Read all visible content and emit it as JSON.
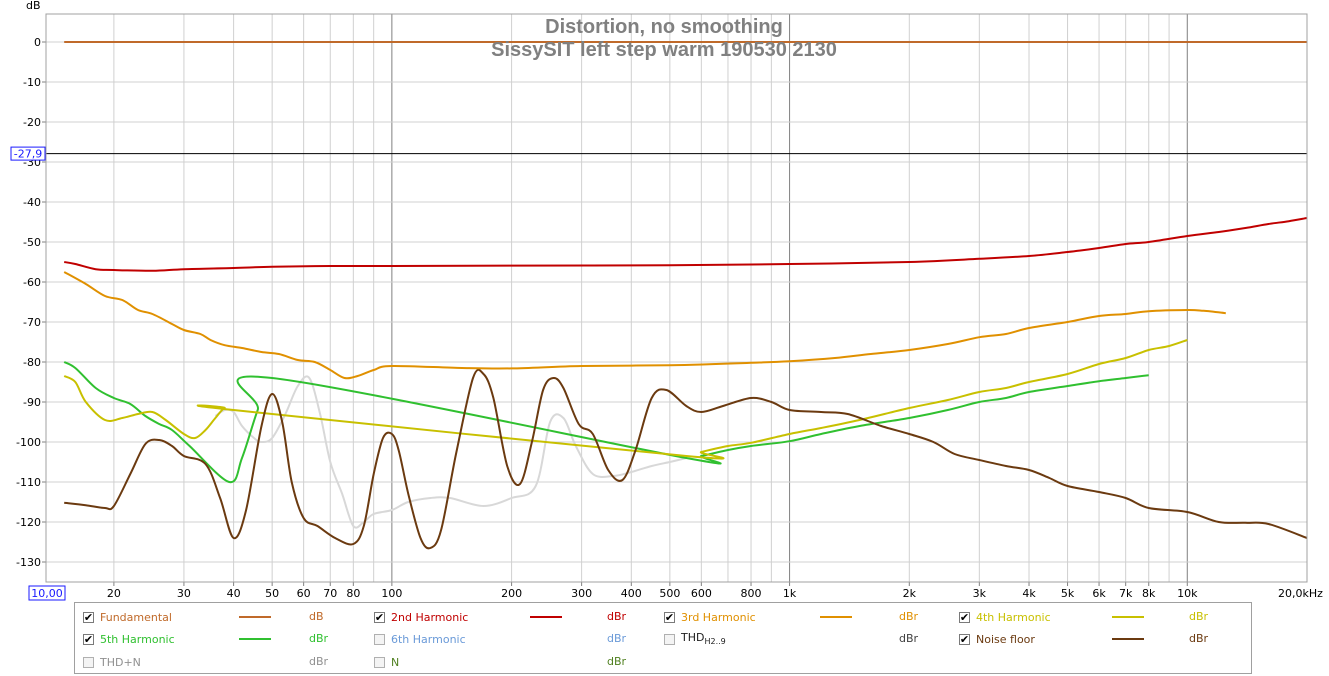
{
  "chart_data": {
    "type": "line",
    "title": "Distortion, no smoothing",
    "subtitle": "SissySIT left step warm 190530 2130",
    "ylabel": "dB",
    "xunit_label": "20,0kHz",
    "x_scale": "log",
    "xlim": [
      13.5,
      20000
    ],
    "ylim": [
      -135,
      7
    ],
    "y_ticks": [
      0,
      -10,
      -20,
      -30,
      -40,
      -50,
      -60,
      -70,
      -80,
      -90,
      -100,
      -110,
      -120,
      -130
    ],
    "x_ticks": [
      {
        "v": 20,
        "l": "20"
      },
      {
        "v": 30,
        "l": "30"
      },
      {
        "v": 40,
        "l": "40"
      },
      {
        "v": 50,
        "l": "50"
      },
      {
        "v": 60,
        "l": "60"
      },
      {
        "v": 70,
        "l": "70"
      },
      {
        "v": 80,
        "l": "80"
      },
      {
        "v": 100,
        "l": "100"
      },
      {
        "v": 200,
        "l": "200"
      },
      {
        "v": 300,
        "l": "300"
      },
      {
        "v": 400,
        "l": "400"
      },
      {
        "v": 500,
        "l": "500"
      },
      {
        "v": 600,
        "l": "600"
      },
      {
        "v": 800,
        "l": "800"
      },
      {
        "v": 1000,
        "l": "1k"
      },
      {
        "v": 2000,
        "l": "2k"
      },
      {
        "v": 3000,
        "l": "3k"
      },
      {
        "v": 4000,
        "l": "4k"
      },
      {
        "v": 5000,
        "l": "5k"
      },
      {
        "v": 6000,
        "l": "6k"
      },
      {
        "v": 7000,
        "l": "7k"
      },
      {
        "v": 8000,
        "l": "8k"
      },
      {
        "v": 10000,
        "l": "10k"
      }
    ],
    "x_min_box": "10,00",
    "cursor": {
      "y": -27.9,
      "label": "-27,9"
    },
    "grid": true,
    "legend_position": "bottom",
    "series": [
      {
        "name": "Fundamental",
        "color": "#c06a2a",
        "points": [
          [
            15,
            0
          ],
          [
            20000,
            0
          ]
        ]
      },
      {
        "name": "2nd Harmonic",
        "color": "#c00000",
        "points": [
          [
            15,
            -55
          ],
          [
            16,
            -55.5
          ],
          [
            18,
            -56.8
          ],
          [
            20,
            -57
          ],
          [
            25,
            -57.2
          ],
          [
            30,
            -56.8
          ],
          [
            40,
            -56.5
          ],
          [
            50,
            -56.2
          ],
          [
            70,
            -56
          ],
          [
            100,
            -56
          ],
          [
            200,
            -55.9
          ],
          [
            500,
            -55.8
          ],
          [
            1000,
            -55.5
          ],
          [
            2000,
            -55
          ],
          [
            3000,
            -54.2
          ],
          [
            4000,
            -53.5
          ],
          [
            5000,
            -52.5
          ],
          [
            6000,
            -51.5
          ],
          [
            7000,
            -50.5
          ],
          [
            8000,
            -50
          ],
          [
            10000,
            -48.5
          ],
          [
            12000,
            -47.5
          ],
          [
            14000,
            -46.5
          ],
          [
            16000,
            -45.5
          ],
          [
            18000,
            -44.8
          ],
          [
            20000,
            -44
          ]
        ]
      },
      {
        "name": "3rd Harmonic",
        "color": "#e09000",
        "points": [
          [
            15,
            -57.5
          ],
          [
            17,
            -60.5
          ],
          [
            19,
            -63.5
          ],
          [
            21,
            -64.5
          ],
          [
            23,
            -67
          ],
          [
            25,
            -68
          ],
          [
            28,
            -70.5
          ],
          [
            30,
            -72
          ],
          [
            33,
            -73
          ],
          [
            35,
            -74.5
          ],
          [
            38,
            -75.8
          ],
          [
            42,
            -76.5
          ],
          [
            47,
            -77.5
          ],
          [
            52,
            -78
          ],
          [
            58,
            -79.5
          ],
          [
            64,
            -80
          ],
          [
            70,
            -82
          ],
          [
            76,
            -84
          ],
          [
            82,
            -83.5
          ],
          [
            90,
            -82
          ],
          [
            100,
            -81
          ],
          [
            150,
            -81.5
          ],
          [
            200,
            -81.6
          ],
          [
            300,
            -81
          ],
          [
            500,
            -80.8
          ],
          [
            800,
            -80.2
          ],
          [
            1000,
            -79.8
          ],
          [
            1300,
            -79
          ],
          [
            1600,
            -78
          ],
          [
            2000,
            -77
          ],
          [
            2500,
            -75.5
          ],
          [
            3000,
            -73.8
          ],
          [
            3500,
            -73
          ],
          [
            4000,
            -71.5
          ],
          [
            5000,
            -70
          ],
          [
            6000,
            -68.5
          ],
          [
            7000,
            -68
          ],
          [
            8000,
            -67.3
          ],
          [
            10000,
            -67
          ],
          [
            11000,
            -67.2
          ],
          [
            12500,
            -67.8
          ]
        ]
      },
      {
        "name": "4th Harmonic",
        "color": "#c8c000",
        "points": [
          [
            15,
            -83.5
          ],
          [
            16,
            -85
          ],
          [
            17,
            -90
          ],
          [
            19,
            -94.5
          ],
          [
            21,
            -94
          ],
          [
            23,
            -93
          ],
          [
            25,
            -92.5
          ],
          [
            27,
            -94.5
          ],
          [
            30,
            -98
          ],
          [
            32,
            -99
          ],
          [
            34,
            -97
          ],
          [
            36,
            -94
          ],
          [
            38,
            -91.5
          ],
          [
            40,
            -92
          ],
          [
            550,
            -103.5
          ],
          [
            600,
            -102.5
          ],
          [
            700,
            -101
          ],
          [
            800,
            -100.2
          ],
          [
            1000,
            -98
          ],
          [
            1200,
            -96.5
          ],
          [
            1500,
            -94.5
          ],
          [
            2000,
            -91.5
          ],
          [
            2500,
            -89.5
          ],
          [
            3000,
            -87.5
          ],
          [
            3500,
            -86.5
          ],
          [
            4000,
            -85
          ],
          [
            5000,
            -83
          ],
          [
            6000,
            -80.5
          ],
          [
            7000,
            -79
          ],
          [
            8000,
            -77
          ],
          [
            9000,
            -76
          ],
          [
            10000,
            -74.5
          ]
        ]
      },
      {
        "name": "5th Harmonic",
        "color": "#30c030",
        "points": [
          [
            15,
            -80
          ],
          [
            16,
            -81.5
          ],
          [
            18,
            -86.5
          ],
          [
            20,
            -89
          ],
          [
            22,
            -90.5
          ],
          [
            24,
            -93.5
          ],
          [
            26,
            -95.5
          ],
          [
            28,
            -97
          ],
          [
            31,
            -101
          ],
          [
            39,
            -110
          ],
          [
            42,
            -104
          ],
          [
            46,
            -92
          ],
          [
            50,
            -84
          ],
          [
            550,
            -104
          ],
          [
            600,
            -103.5
          ],
          [
            700,
            -102
          ],
          [
            800,
            -101
          ],
          [
            1000,
            -99.8
          ],
          [
            1200,
            -98
          ],
          [
            1500,
            -96
          ],
          [
            2000,
            -94
          ],
          [
            2500,
            -92
          ],
          [
            3000,
            -90
          ],
          [
            3500,
            -89
          ],
          [
            4000,
            -87.5
          ],
          [
            5000,
            -86
          ],
          [
            6000,
            -84.8
          ],
          [
            7000,
            -84
          ],
          [
            8000,
            -83.3
          ]
        ]
      },
      {
        "name": "Noise floor",
        "color": "#6b3a10",
        "points": [
          [
            15,
            -115.2
          ],
          [
            17,
            -115.8
          ],
          [
            19,
            -116.5
          ],
          [
            20,
            -116
          ],
          [
            22,
            -108
          ],
          [
            24,
            -100.5
          ],
          [
            26,
            -99.5
          ],
          [
            28,
            -101
          ],
          [
            30,
            -103.5
          ],
          [
            34,
            -105.5
          ],
          [
            37,
            -114
          ],
          [
            40,
            -124
          ],
          [
            43,
            -117
          ],
          [
            47,
            -96
          ],
          [
            50,
            -88
          ],
          [
            53,
            -95
          ],
          [
            56,
            -110
          ],
          [
            60,
            -119
          ],
          [
            65,
            -121
          ],
          [
            72,
            -124
          ],
          [
            80,
            -125.5
          ],
          [
            85,
            -121
          ],
          [
            90,
            -108
          ],
          [
            95,
            -99
          ],
          [
            100,
            -98
          ],
          [
            104,
            -102
          ],
          [
            110,
            -113
          ],
          [
            118,
            -124
          ],
          [
            125,
            -126.5
          ],
          [
            133,
            -122
          ],
          [
            145,
            -103
          ],
          [
            160,
            -84
          ],
          [
            170,
            -83
          ],
          [
            180,
            -89
          ],
          [
            195,
            -106
          ],
          [
            210,
            -110.5
          ],
          [
            225,
            -100
          ],
          [
            240,
            -87
          ],
          [
            255,
            -84
          ],
          [
            270,
            -86.5
          ],
          [
            295,
            -95.5
          ],
          [
            320,
            -98
          ],
          [
            350,
            -107
          ],
          [
            380,
            -109.5
          ],
          [
            410,
            -102
          ],
          [
            450,
            -89
          ],
          [
            490,
            -87
          ],
          [
            550,
            -91
          ],
          [
            600,
            -92.5
          ],
          [
            680,
            -91
          ],
          [
            800,
            -89
          ],
          [
            900,
            -90
          ],
          [
            1000,
            -92
          ],
          [
            1200,
            -92.5
          ],
          [
            1400,
            -93
          ],
          [
            1700,
            -96
          ],
          [
            2000,
            -98
          ],
          [
            2300,
            -100
          ],
          [
            2600,
            -103
          ],
          [
            3000,
            -104.5
          ],
          [
            3500,
            -106
          ],
          [
            4000,
            -107
          ],
          [
            4500,
            -109
          ],
          [
            5000,
            -111
          ],
          [
            6000,
            -112.5
          ],
          [
            7000,
            -114
          ],
          [
            8000,
            -116.5
          ],
          [
            10000,
            -117.5
          ],
          [
            12000,
            -120
          ],
          [
            14000,
            -120.2
          ],
          [
            16000,
            -120.5
          ],
          [
            20000,
            -124
          ]
        ]
      }
    ],
    "thd_trace": {
      "color": "#d8d8d8",
      "points": [
        [
          36,
          -93.5
        ],
        [
          38,
          -92
        ],
        [
          40,
          -92.5
        ],
        [
          42,
          -96
        ],
        [
          45,
          -99
        ],
        [
          47,
          -100
        ],
        [
          50,
          -99
        ],
        [
          54,
          -93
        ],
        [
          58,
          -86
        ],
        [
          62,
          -84
        ],
        [
          66,
          -93
        ],
        [
          70,
          -105
        ],
        [
          75,
          -113
        ],
        [
          80,
          -121
        ],
        [
          85,
          -120
        ],
        [
          90,
          -118
        ],
        [
          100,
          -117
        ],
        [
          110,
          -115
        ],
        [
          125,
          -114
        ],
        [
          140,
          -114
        ],
        [
          170,
          -116
        ],
        [
          200,
          -114
        ],
        [
          230,
          -111
        ],
        [
          250,
          -95
        ],
        [
          270,
          -94
        ],
        [
          290,
          -101
        ],
        [
          320,
          -108
        ],
        [
          360,
          -108.5
        ],
        [
          400,
          -107.5
        ],
        [
          450,
          -106
        ],
        [
          500,
          -105
        ],
        [
          550,
          -104
        ]
      ]
    }
  },
  "legend": [
    {
      "label": "Fundamental",
      "checked": true,
      "color": "#c06a2a",
      "unit": "dB",
      "unit_color": "#c06a2a"
    },
    {
      "label": "2nd Harmonic",
      "checked": true,
      "color": "#c00000",
      "unit": "dBr",
      "unit_color": "#c00000"
    },
    {
      "label": "3rd Harmonic",
      "checked": true,
      "color": "#e09000",
      "unit": "dBr",
      "unit_color": "#e09000"
    },
    {
      "label": "4th Harmonic",
      "checked": true,
      "color": "#c8c000",
      "unit": "dBr",
      "unit_color": "#c8c000"
    },
    {
      "label": "5th Harmonic",
      "checked": true,
      "color": "#30c030",
      "unit": "dBr",
      "unit_color": "#30c030"
    },
    {
      "label": "6th Harmonic",
      "checked": false,
      "color": "#6a9ad8",
      "unit": "dBr",
      "unit_color": "#6a9ad8"
    },
    {
      "label": "THD",
      "sub": "H2..9",
      "checked": false,
      "color": "#202020",
      "unit": "dBr",
      "unit_color": "#404040"
    },
    {
      "label": "Noise floor",
      "checked": true,
      "color": "#6b3a10",
      "unit": "dBr",
      "unit_color": "#6b3a10"
    },
    {
      "label": "THD+N",
      "checked": false,
      "color": "#909090",
      "unit": "dBr",
      "unit_color": "#909090"
    },
    {
      "label": "N",
      "checked": false,
      "color": "#508020",
      "unit": "dBr",
      "unit_color": "#508020"
    }
  ]
}
